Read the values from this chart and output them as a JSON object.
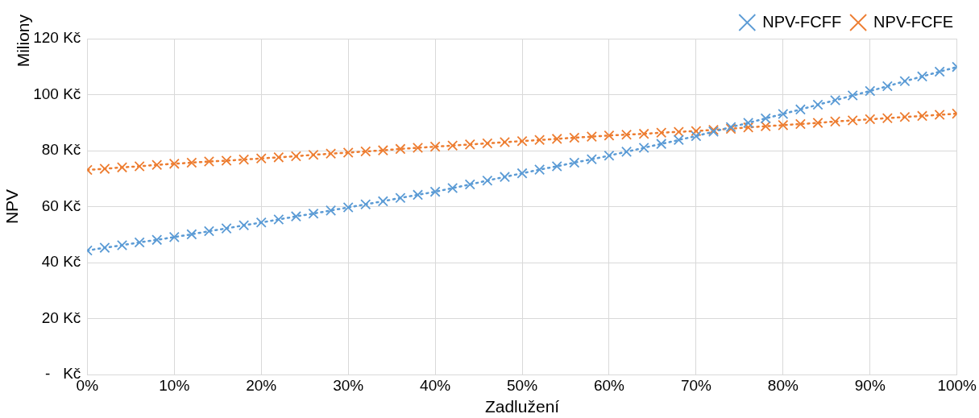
{
  "chart_data": {
    "type": "line",
    "xlabel": "Zadlužení",
    "ylabel": "NPV",
    "annotations": [
      "Miliony"
    ],
    "x": [
      0,
      2,
      4,
      6,
      8,
      10,
      12,
      14,
      16,
      18,
      20,
      22,
      24,
      26,
      28,
      30,
      32,
      34,
      36,
      38,
      40,
      42,
      44,
      46,
      48,
      50,
      52,
      54,
      56,
      58,
      60,
      62,
      64,
      66,
      68,
      70,
      72,
      74,
      76,
      78,
      80,
      82,
      84,
      86,
      88,
      90,
      92,
      94,
      96,
      98,
      100
    ],
    "series": [
      {
        "name": "NPV-FCFF",
        "color": "#5b9bd5",
        "values": [
          44.3,
          45.3,
          46.2,
          47.2,
          48.1,
          49.1,
          50.1,
          51.2,
          52.2,
          53.3,
          54.3,
          55.4,
          56.5,
          57.5,
          58.6,
          59.7,
          60.8,
          61.9,
          63.1,
          64.2,
          65.3,
          66.6,
          67.9,
          69.3,
          70.6,
          71.9,
          73.2,
          74.4,
          75.7,
          76.9,
          78.2,
          79.6,
          81.0,
          82.4,
          83.8,
          85.2,
          86.8,
          88.4,
          89.9,
          91.5,
          93.1,
          94.7,
          96.4,
          98.0,
          99.7,
          101.3,
          103.0,
          104.8,
          106.5,
          108.2,
          109.9
        ]
      },
      {
        "name": "NPV-FCFE",
        "color": "#ed7d31",
        "values": [
          73.1,
          73.5,
          74.0,
          74.4,
          74.9,
          75.3,
          75.7,
          76.1,
          76.4,
          76.8,
          77.2,
          77.6,
          78.0,
          78.5,
          78.9,
          79.3,
          79.7,
          80.1,
          80.6,
          81.0,
          81.4,
          81.8,
          82.2,
          82.6,
          83.0,
          83.4,
          83.8,
          84.2,
          84.6,
          85.0,
          85.4,
          85.7,
          86.0,
          86.4,
          86.7,
          87.0,
          87.4,
          87.8,
          88.3,
          88.7,
          89.1,
          89.5,
          89.9,
          90.4,
          90.8,
          91.2,
          91.6,
          92.0,
          92.4,
          92.8,
          93.2
        ]
      }
    ],
    "xlim": [
      0,
      100
    ],
    "xticks": [
      {
        "value": 0,
        "label": "0%"
      },
      {
        "value": 10,
        "label": "10%"
      },
      {
        "value": 20,
        "label": "20%"
      },
      {
        "value": 30,
        "label": "30%"
      },
      {
        "value": 40,
        "label": "40%"
      },
      {
        "value": 50,
        "label": "50%"
      },
      {
        "value": 60,
        "label": "60%"
      },
      {
        "value": 70,
        "label": "70%"
      },
      {
        "value": 80,
        "label": "80%"
      },
      {
        "value": 90,
        "label": "90%"
      },
      {
        "value": 100,
        "label": "100%"
      }
    ],
    "ylim": [
      0,
      120
    ],
    "yticks": [
      {
        "value": 0,
        "label": "-   Kč"
      },
      {
        "value": 20,
        "label": "20 Kč"
      },
      {
        "value": 40,
        "label": "40 Kč"
      },
      {
        "value": 60,
        "label": "60 Kč"
      },
      {
        "value": 80,
        "label": "80 Kč"
      },
      {
        "value": 100,
        "label": "100 Kč"
      },
      {
        "value": 120,
        "label": "120 Kč"
      }
    ],
    "grid": true,
    "legend": "top right",
    "marker": "cross",
    "line_style": "dotted"
  }
}
